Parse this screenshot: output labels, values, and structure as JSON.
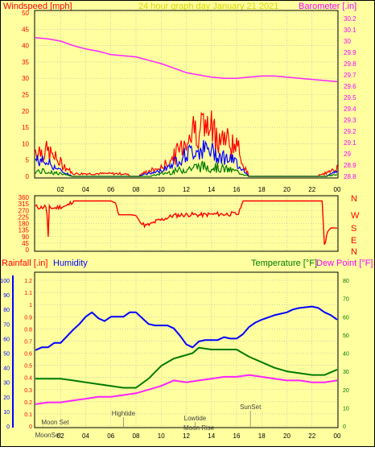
{
  "header": {
    "left_title": "Windspeed [mph]",
    "center_title": "24 hour graph day   January 21 2021",
    "right_title": "Barometer [.in]"
  },
  "colors": {
    "background": "#FFFFA0",
    "frame_border": "#000000",
    "red": "#FF0000",
    "blue": "#0000FF",
    "green": "#007A00",
    "magenta": "#FF22FF",
    "center_title_color": "#D7D700",
    "top_title_color": "#FF0000",
    "right_title_color": "#FF00FF"
  },
  "x_tick_labels": [
    "02",
    "04",
    "06",
    "08",
    "10",
    "12",
    "14",
    "16",
    "18",
    "20",
    "22",
    "00"
  ],
  "chart_data": [
    {
      "id": "wind-baro",
      "type": "line",
      "y_left": {
        "label": "Windspeed [mph]",
        "ticks": [
          0,
          5,
          10,
          15,
          20,
          25,
          30,
          35,
          40,
          45,
          50
        ],
        "range": [
          0,
          50
        ]
      },
      "y_right": {
        "label": "Barometer [.in]",
        "ticks": [
          "28.8",
          "28.9",
          "29",
          "29.1",
          "29.2",
          "29.3",
          "29.4",
          "29.5",
          "29.6",
          "29.7",
          "29.8",
          "29.9",
          "30",
          "30.1",
          "30.2"
        ],
        "range": [
          28.8,
          30.25
        ]
      },
      "x": {
        "ticks": [
          "02",
          "04",
          "06",
          "08",
          "10",
          "12",
          "14",
          "16",
          "18",
          "20",
          "22",
          "00"
        ]
      },
      "barometer": {
        "x": [
          0,
          1,
          2,
          3,
          4,
          5,
          6,
          7,
          8,
          9,
          10,
          11,
          12,
          13,
          14,
          15,
          16,
          17,
          18,
          19,
          20,
          21,
          22,
          23,
          24
        ],
        "y": [
          30.03,
          30.02,
          30.0,
          29.96,
          29.93,
          29.91,
          29.88,
          29.87,
          29.86,
          29.83,
          29.8,
          29.76,
          29.72,
          29.7,
          29.68,
          29.67,
          29.67,
          29.68,
          29.69,
          29.69,
          29.68,
          29.67,
          29.66,
          29.65,
          29.64
        ]
      },
      "wind": {
        "x": [
          0,
          1,
          2,
          3,
          4,
          5,
          6,
          7,
          8,
          9,
          10,
          11,
          12,
          13,
          14,
          15,
          16,
          17,
          18,
          19,
          20,
          21,
          22,
          23,
          24
        ],
        "gust": [
          10,
          9,
          5,
          1,
          1,
          1,
          1,
          1,
          0,
          2,
          3,
          7,
          14,
          19,
          17,
          14,
          11,
          0,
          0,
          0,
          0,
          0,
          0,
          1,
          3
        ],
        "avg": [
          6,
          5,
          2,
          0,
          0,
          0,
          0,
          0,
          0,
          1,
          2,
          5,
          8,
          10,
          9,
          7,
          5,
          0,
          0,
          0,
          0,
          0,
          0,
          0,
          2
        ],
        "low": [
          2,
          2,
          1,
          0,
          0,
          0,
          0,
          0,
          0,
          0,
          1,
          2,
          3,
          4,
          4,
          3,
          2,
          0,
          0,
          0,
          0,
          0,
          0,
          0,
          1
        ]
      }
    },
    {
      "id": "wind-direction",
      "type": "line",
      "y_left": {
        "ticks": [
          "360",
          "315",
          "270",
          "225",
          "180",
          "135",
          "90",
          "45",
          "0"
        ],
        "range": [
          0,
          360
        ]
      },
      "y_right_labels": [
        "N",
        "W",
        "S",
        "E",
        "N"
      ],
      "x": [
        0,
        0.5,
        0.9,
        1.0,
        1.1,
        1.5,
        2,
        2.5,
        3,
        3.5,
        4,
        4.5,
        5,
        5.5,
        6,
        6.4,
        6.6,
        7,
        7.6,
        8.0,
        8.4,
        8.8,
        9.2,
        9.6,
        10,
        10.5,
        11,
        11.5,
        12,
        12.5,
        13,
        13.5,
        14,
        14.5,
        15,
        15.5,
        16,
        16.2,
        16.5,
        17,
        18,
        19,
        20,
        21,
        22,
        22.8,
        23.0,
        23.2,
        23.5,
        24
      ],
      "y": [
        295,
        290,
        300,
        40,
        290,
        285,
        295,
        300,
        335,
        335,
        335,
        335,
        335,
        335,
        335,
        320,
        240,
        240,
        240,
        235,
        180,
        165,
        175,
        195,
        205,
        220,
        235,
        238,
        240,
        242,
        238,
        240,
        243,
        245,
        243,
        246,
        245,
        250,
        335,
        335,
        335,
        335,
        335,
        335,
        335,
        335,
        10,
        120,
        150,
        148
      ]
    },
    {
      "id": "rain-humidity-temp",
      "type": "line",
      "y_far_left": {
        "label": "Humidity",
        "ticks": [
          0,
          10,
          20,
          30,
          40,
          50,
          60,
          70,
          80,
          90,
          100
        ],
        "range": [
          0,
          100
        ]
      },
      "y_left": {
        "label": "Rainfall [.in]",
        "ticks": [
          "0",
          "0.1",
          "0.2",
          "0.3",
          "0.4",
          "0.5",
          "0.6",
          "0.7",
          "0.8",
          "0.9",
          "1",
          "1.1",
          "1.2"
        ],
        "range": [
          0,
          1.2
        ]
      },
      "y_right": {
        "label": "Temperature [°F]",
        "ticks": [
          0,
          10,
          20,
          30,
          40,
          50,
          60,
          70,
          80
        ],
        "range": [
          0,
          82
        ]
      },
      "y_right_label_2": "Dew Point [°F]",
      "humidity": {
        "x": [
          0,
          0.5,
          1,
          1.5,
          2,
          3,
          3.5,
          4,
          4.5,
          5,
          5.5,
          6,
          6.5,
          7,
          7.5,
          8,
          8.5,
          9,
          9.5,
          10,
          10.5,
          11,
          11.5,
          12,
          12.5,
          13,
          13.5,
          14,
          14.5,
          15,
          15.5,
          16,
          16.5,
          17,
          17.5,
          18,
          19,
          20,
          20.5,
          21,
          22,
          22.5,
          23,
          23.5,
          24
        ],
        "y": [
          52,
          54,
          54,
          57,
          57,
          66,
          70,
          75,
          78,
          74,
          72,
          75,
          75,
          75,
          78,
          78,
          74,
          70,
          69,
          69,
          69,
          67,
          62,
          56,
          54,
          58,
          59,
          59,
          59,
          61,
          60,
          60,
          63,
          68,
          71,
          73,
          76,
          78,
          80,
          81,
          82,
          81,
          78,
          76,
          73
        ]
      },
      "temperature": {
        "x": [
          0,
          1,
          2,
          3,
          4,
          5,
          6,
          7,
          8,
          9,
          10,
          10.5,
          11,
          11.5,
          12,
          12.5,
          13,
          14,
          15,
          16,
          17,
          18,
          19,
          20,
          21,
          22,
          23,
          24
        ],
        "y": [
          26,
          26,
          26,
          25,
          24,
          23,
          22,
          21,
          21,
          26,
          33,
          35,
          37,
          38,
          39,
          40,
          43,
          42,
          42,
          42,
          38,
          35,
          32,
          30,
          29,
          28,
          28,
          31
        ]
      },
      "dewpoint": {
        "x": [
          0,
          1,
          2,
          3,
          4,
          5,
          6,
          7,
          8,
          9,
          10,
          11,
          12,
          13,
          14,
          15,
          16,
          17,
          18,
          19,
          20,
          21,
          22,
          23,
          24
        ],
        "y": [
          12,
          13,
          13,
          14,
          15,
          16,
          16,
          17,
          18,
          20,
          22,
          25,
          24,
          25,
          26,
          27,
          27,
          28,
          27,
          26,
          25,
          25,
          24,
          24,
          25
        ]
      },
      "annotations": [
        {
          "label": "Moon Set",
          "x": 0.6,
          "row": "upper"
        },
        {
          "label": "Hightide",
          "x": 7.0,
          "row": "mid"
        },
        {
          "label": "Lowtide",
          "x": 12.7,
          "row": "low"
        },
        {
          "label": "SunSet",
          "x": 17.1,
          "row": "upper2"
        },
        {
          "label": "Moon Rise",
          "x": 13.0,
          "row": "bottom"
        },
        {
          "label": "MoonSet",
          "x": 1.0,
          "row": "axis"
        }
      ]
    }
  ],
  "bottom_panel_titles": {
    "rain": "Rainfall [.in]",
    "humidity": "Humidity",
    "temperature": "Temperature [°F]",
    "dewpoint": "Dew Point [°F]"
  }
}
